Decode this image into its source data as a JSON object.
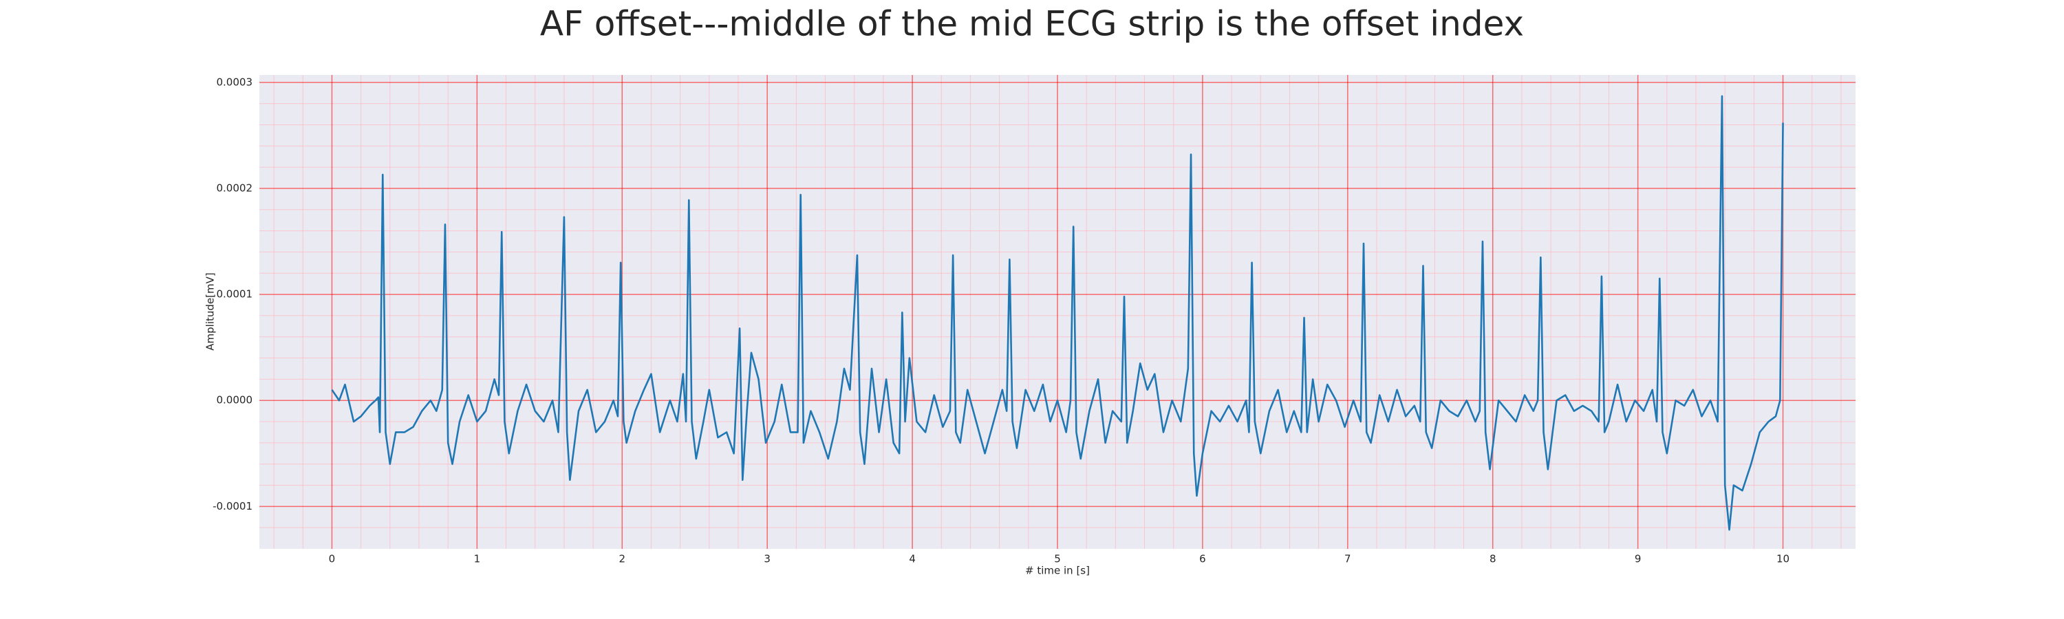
{
  "chart_data": {
    "type": "line",
    "title": "AF offset---middle of the mid ECG strip is the offset index",
    "xlabel": "# time in [s]",
    "ylabel": "Amplitude[mV]",
    "color": "#1f77b4",
    "grid": true,
    "minor_grid": true,
    "xlim": [
      -0.5,
      10.5
    ],
    "ylim": [
      -0.00014,
      0.000307
    ],
    "xticks": [
      0,
      1,
      2,
      3,
      4,
      5,
      6,
      7,
      8,
      9,
      10
    ],
    "yticks": [
      -0.0001,
      {
        "value": 0,
        "label": "0.0000"
      },
      0.0001,
      0.0002,
      0.0003
    ],
    "x": [
      0.0,
      0.05,
      0.09,
      0.15,
      0.2,
      0.26,
      0.3,
      0.32,
      0.33,
      0.35,
      0.37,
      0.4,
      0.44,
      0.5,
      0.56,
      0.62,
      0.68,
      0.72,
      0.76,
      0.78,
      0.8,
      0.83,
      0.88,
      0.94,
      1.0,
      1.06,
      1.12,
      1.15,
      1.17,
      1.19,
      1.22,
      1.28,
      1.34,
      1.4,
      1.46,
      1.52,
      1.56,
      1.6,
      1.62,
      1.64,
      1.7,
      1.76,
      1.82,
      1.88,
      1.94,
      1.97,
      1.99,
      2.01,
      2.03,
      2.09,
      2.15,
      2.2,
      2.26,
      2.33,
      2.38,
      2.42,
      2.44,
      2.46,
      2.48,
      2.51,
      2.56,
      2.6,
      2.66,
      2.72,
      2.77,
      2.81,
      2.83,
      2.86,
      2.89,
      2.94,
      2.99,
      3.05,
      3.1,
      3.16,
      3.21,
      3.23,
      3.25,
      3.3,
      3.36,
      3.42,
      3.48,
      3.53,
      3.57,
      3.62,
      3.64,
      3.67,
      3.72,
      3.77,
      3.82,
      3.87,
      3.91,
      3.93,
      3.95,
      3.98,
      4.03,
      4.09,
      4.15,
      4.21,
      4.26,
      4.28,
      4.3,
      4.33,
      4.38,
      4.44,
      4.5,
      4.56,
      4.62,
      4.65,
      4.67,
      4.69,
      4.72,
      4.78,
      4.84,
      4.9,
      4.95,
      5.0,
      5.06,
      5.09,
      5.11,
      5.13,
      5.16,
      5.22,
      5.28,
      5.33,
      5.38,
      5.44,
      5.46,
      5.48,
      5.52,
      5.57,
      5.62,
      5.67,
      5.73,
      5.79,
      5.85,
      5.9,
      5.92,
      5.94,
      5.96,
      6.0,
      6.06,
      6.12,
      6.18,
      6.24,
      6.3,
      6.32,
      6.34,
      6.36,
      6.4,
      6.46,
      6.52,
      6.58,
      6.63,
      6.68,
      6.7,
      6.72,
      6.76,
      6.8,
      6.86,
      6.92,
      6.98,
      7.04,
      7.09,
      7.11,
      7.13,
      7.16,
      7.22,
      7.28,
      7.34,
      7.4,
      7.46,
      7.5,
      7.52,
      7.54,
      7.58,
      7.64,
      7.7,
      7.76,
      7.82,
      7.88,
      7.91,
      7.93,
      7.95,
      7.98,
      8.04,
      8.1,
      8.16,
      8.22,
      8.28,
      8.31,
      8.33,
      8.35,
      8.38,
      8.44,
      8.5,
      8.56,
      8.62,
      8.68,
      8.73,
      8.75,
      8.77,
      8.8,
      8.86,
      8.92,
      8.98,
      9.04,
      9.1,
      9.13,
      9.15,
      9.17,
      9.2,
      9.26,
      9.32,
      9.38,
      9.44,
      9.5,
      9.55,
      9.58,
      9.6,
      9.63,
      9.66,
      9.72,
      9.78,
      9.84,
      9.9,
      9.95,
      9.98,
      10.0
    ],
    "values": [
      1e-05,
      0.0,
      1.5e-05,
      -2e-05,
      -1.5e-05,
      -5e-06,
      0.0,
      3e-06,
      -3e-05,
      0.000213,
      -3e-05,
      -6e-05,
      -3e-05,
      -3e-05,
      -2.5e-05,
      -1e-05,
      0.0,
      -1e-05,
      1e-05,
      0.000166,
      -4e-05,
      -6e-05,
      -2e-05,
      5e-06,
      -2e-05,
      -1e-05,
      2e-05,
      5e-06,
      0.000159,
      -2e-05,
      -5e-05,
      -1e-05,
      1.5e-05,
      -1e-05,
      -2e-05,
      0.0,
      -3e-05,
      0.000173,
      -3e-05,
      -7.5e-05,
      -1e-05,
      1e-05,
      -3e-05,
      -2e-05,
      0.0,
      -1.5e-05,
      0.00013,
      -2e-05,
      -4e-05,
      -1e-05,
      1e-05,
      2.5e-05,
      -3e-05,
      0.0,
      -2e-05,
      2.5e-05,
      -2e-05,
      0.000189,
      -2e-05,
      -5.5e-05,
      -2e-05,
      1e-05,
      -3.5e-05,
      -3e-05,
      -5e-05,
      6.8e-05,
      -7.5e-05,
      -1e-05,
      4.5e-05,
      2e-05,
      -4e-05,
      -2e-05,
      1.5e-05,
      -3e-05,
      -3e-05,
      0.000194,
      -4e-05,
      -1e-05,
      -3e-05,
      -5.5e-05,
      -2e-05,
      3e-05,
      1e-05,
      0.000137,
      -3e-05,
      -6e-05,
      3e-05,
      -3e-05,
      2e-05,
      -4e-05,
      -5e-05,
      8.3e-05,
      -2e-05,
      4e-05,
      -2e-05,
      -3e-05,
      5e-06,
      -2.5e-05,
      -1e-05,
      0.000137,
      -3e-05,
      -4e-05,
      1e-05,
      -2e-05,
      -5e-05,
      -2e-05,
      1e-05,
      -1e-05,
      0.000133,
      -2e-05,
      -4.5e-05,
      1e-05,
      -1e-05,
      1.5e-05,
      -2e-05,
      0.0,
      -3e-05,
      0.0,
      0.000164,
      -3e-05,
      -5.5e-05,
      -1e-05,
      2e-05,
      -4e-05,
      -1e-05,
      -2e-05,
      9.8e-05,
      -4e-05,
      -1e-05,
      3.5e-05,
      1e-05,
      2.5e-05,
      -3e-05,
      0.0,
      -2e-05,
      3e-05,
      0.000232,
      -5e-05,
      -9e-05,
      -5e-05,
      -1e-05,
      -2e-05,
      -5e-06,
      -2e-05,
      0.0,
      -3e-05,
      0.00013,
      -2e-05,
      -5e-05,
      -1e-05,
      1e-05,
      -3e-05,
      -1e-05,
      -3e-05,
      7.8e-05,
      -3e-05,
      2e-05,
      -2e-05,
      1.5e-05,
      0.0,
      -2.5e-05,
      0.0,
      -2e-05,
      0.000148,
      -3e-05,
      -4e-05,
      5e-06,
      -2e-05,
      1e-05,
      -1.5e-05,
      -5e-06,
      -2e-05,
      0.000127,
      -3e-05,
      -4.5e-05,
      0.0,
      -1e-05,
      -1.5e-05,
      0.0,
      -2e-05,
      -1e-05,
      0.00015,
      -3e-05,
      -6.5e-05,
      0.0,
      -1e-05,
      -2e-05,
      5e-06,
      -1e-05,
      0.0,
      0.000135,
      -3e-05,
      -6.5e-05,
      0.0,
      5e-06,
      -1e-05,
      -5e-06,
      -1e-05,
      -2e-05,
      0.000117,
      -3e-05,
      -2e-05,
      1.5e-05,
      -2e-05,
      0.0,
      -1e-05,
      1e-05,
      -2e-05,
      0.000115,
      -3e-05,
      -5e-05,
      0.0,
      -5e-06,
      1e-05,
      -1.5e-05,
      0.0,
      -2e-05,
      0.000287,
      -8e-05,
      -0.000122,
      -8e-05,
      -8.5e-05,
      -6e-05,
      -3e-05,
      -2e-05,
      -1.5e-05,
      0.0,
      0.000262
    ]
  }
}
